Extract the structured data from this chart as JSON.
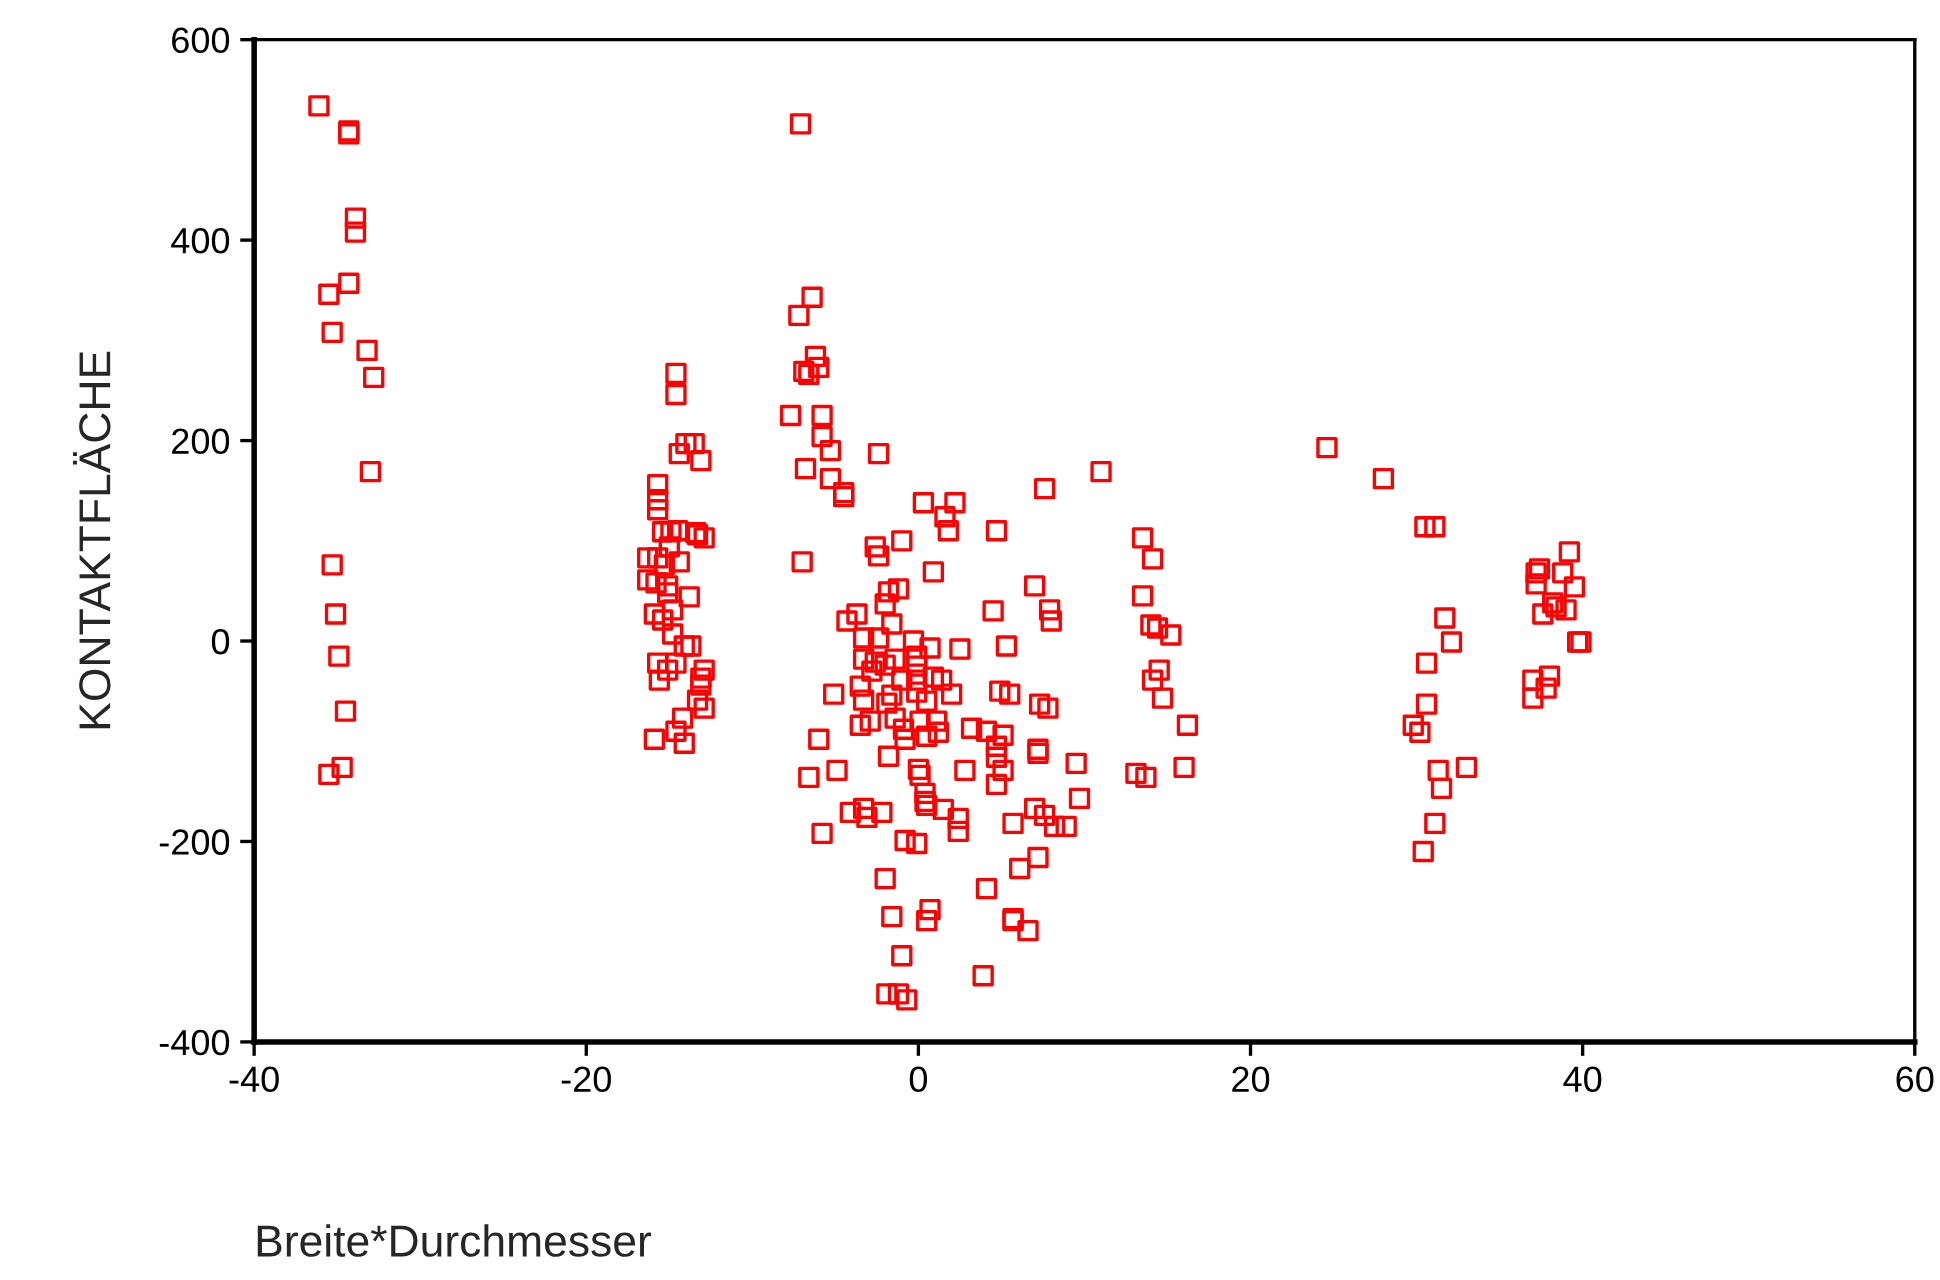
{
  "chart_data": {
    "type": "scatter",
    "xlabel": "Breite*Durchmesser",
    "ylabel": "KONTAKTFLÄCHE",
    "xlim": [
      -40,
      60
    ],
    "xticks": [
      -40,
      -20,
      0,
      20,
      40,
      60
    ],
    "ylim": [
      -400,
      600
    ],
    "yticks": [
      -400,
      -200,
      0,
      200,
      400,
      600
    ],
    "marker": "square",
    "series": [
      {
        "color": "#ff0000",
        "x": [
          -36.1,
          -34.3,
          -34.3,
          -33.9,
          -33.9,
          -34.3,
          -35.5,
          -35.3,
          -33.2,
          -32.8,
          -33.0,
          -35.3,
          -35.1,
          -34.9,
          -34.5,
          -34.7,
          -35.5,
          -14.6,
          -14.6,
          -14.0,
          -13.5,
          -14.4,
          -13.1,
          -15.7,
          -15.7,
          -15.7,
          -15.4,
          -14.9,
          -14.5,
          -13.4,
          -12.9,
          -13.3,
          -16.3,
          -15.7,
          -15.3,
          -14.4,
          -15.0,
          -16.3,
          -15.8,
          -15.1,
          -15.1,
          -13.8,
          -15.9,
          -15.4,
          -14.8,
          -14.8,
          -14.1,
          -13.7,
          -15.7,
          -15.1,
          -14.6,
          -15.6,
          -12.9,
          -13.1,
          -13.1,
          -13.3,
          -12.9,
          -14.2,
          -14.6,
          -14.1,
          -15.9,
          -7.1,
          -6.4,
          -7.2,
          -6.2,
          -6.0,
          -6.9,
          -6.6,
          -7.7,
          -5.8,
          -5.8,
          -5.3,
          -6.8,
          -5.3,
          -4.5,
          -4.5,
          -2.4,
          7.6,
          11.0,
          -7.0,
          -2.6,
          -2.4,
          -1.0,
          0.9,
          1.8,
          1.6,
          0.3,
          2.2,
          4.7,
          7.0,
          7.9,
          8.0,
          4.5,
          5.3,
          13.5,
          14.1,
          13.5,
          14.0,
          14.4,
          15.2,
          14.5,
          14.1,
          14.7,
          16.2,
          13.1,
          13.7,
          16.0,
          -1.8,
          -1.2,
          -2.0,
          -3.7,
          -4.3,
          -1.6,
          -3.3,
          -2.4,
          -0.3,
          0.7,
          2.5,
          -3.3,
          -2.6,
          -2.0,
          -1.4,
          -0.1,
          -0.1,
          -2.8,
          -1.0,
          -0.1,
          0.9,
          1.4,
          -5.1,
          -3.5,
          -3.3,
          -1.6,
          -1.9,
          -0.1,
          0.5,
          2.0,
          4.9,
          5.5,
          7.3,
          7.8,
          -3.5,
          -2.9,
          -1.4,
          -0.9,
          -0.8,
          0.1,
          0.5,
          1.1,
          1.2,
          3.2,
          4.1,
          5.1,
          4.7,
          4.7,
          7.2,
          7.2,
          9.5,
          -6.0,
          -1.8,
          -4.9,
          -6.6,
          0.0,
          0.1,
          2.8,
          5.1,
          4.7,
          9.7,
          0.4,
          0.4,
          0.5,
          1.5,
          2.4,
          2.4,
          -4.1,
          -3.3,
          -3.1,
          -2.2,
          -5.8,
          -0.8,
          -0.1,
          5.7,
          7.0,
          7.6,
          8.2,
          8.9,
          7.2,
          6.1,
          4.1,
          -2.0,
          -1.6,
          0.7,
          0.5,
          5.7,
          5.7,
          6.6,
          -1.0,
          3.9,
          -1.9,
          -1.2,
          -0.7,
          24.6,
          28.0,
          30.5,
          31.1,
          39.2,
          37.4,
          37.2,
          38.8,
          37.2,
          39.5,
          31.7,
          38.2,
          38.4,
          39.0,
          37.6,
          32.1,
          39.7,
          39.9,
          30.6,
          37.0,
          38.0,
          37.8,
          37.0,
          30.6,
          29.8,
          30.2,
          31.3,
          33.0,
          31.5,
          31.1,
          30.4
        ],
        "values": [
          534,
          509,
          506,
          422,
          408,
          357,
          346,
          308,
          290,
          263,
          169,
          76,
          27,
          -15,
          -70,
          -126,
          -133,
          267,
          246,
          197,
          197,
          187,
          180,
          156,
          141,
          131,
          109,
          109,
          110,
          108,
          103,
          106,
          83,
          83,
          76,
          79,
          94,
          61,
          58,
          55,
          48,
          44,
          27,
          21,
          31,
          7,
          -5,
          -5,
          -22,
          -29,
          -22,
          -39,
          -29,
          -37,
          -44,
          -59,
          -67,
          -77,
          -90,
          -102,
          -98,
          516,
          343,
          325,
          284,
          273,
          269,
          266,
          225,
          225,
          204,
          190,
          172,
          162,
          148,
          144,
          187,
          152,
          169,
          79,
          94,
          85,
          100,
          69,
          110,
          124,
          138,
          138,
          110,
          55,
          31,
          20,
          30,
          -5,
          103,
          82,
          45,
          16,
          13,
          6,
          -29,
          -39,
          -57,
          -84,
          -132,
          -136,
          -126,
          49,
          52,
          37,
          27,
          20,
          17,
          3,
          3,
          0,
          -7,
          -8,
          -18,
          -21,
          -24,
          -18,
          -15,
          -25,
          -30,
          -39,
          -39,
          -36,
          -39,
          -53,
          -45,
          -59,
          -54,
          -62,
          -51,
          -60,
          -53,
          -50,
          -53,
          -63,
          -67,
          -84,
          -80,
          -77,
          -88,
          -98,
          -80,
          -95,
          -80,
          -91,
          -87,
          -90,
          -94,
          -105,
          -116,
          -108,
          -112,
          -122,
          -98,
          -115,
          -129,
          -136,
          -128,
          -134,
          -129,
          -129,
          -143,
          -157,
          -152,
          -160,
          -164,
          -168,
          -177,
          -190,
          -171,
          -167,
          -176,
          -171,
          -192,
          -199,
          -202,
          -182,
          -167,
          -174,
          -185,
          -185,
          -216,
          -227,
          -247,
          -237,
          -275,
          -268,
          -279,
          -277,
          -279,
          -289,
          -314,
          -334,
          -352,
          -352,
          -358,
          193,
          162,
          114,
          114,
          89,
          72,
          68,
          68,
          57,
          54,
          23,
          38,
          34,
          31,
          27,
          -1,
          -1,
          -1,
          -22,
          -39,
          -35,
          -47,
          -57,
          -63,
          -84,
          -91,
          -129,
          -126,
          -147,
          -182,
          -210
        ]
      }
    ]
  }
}
